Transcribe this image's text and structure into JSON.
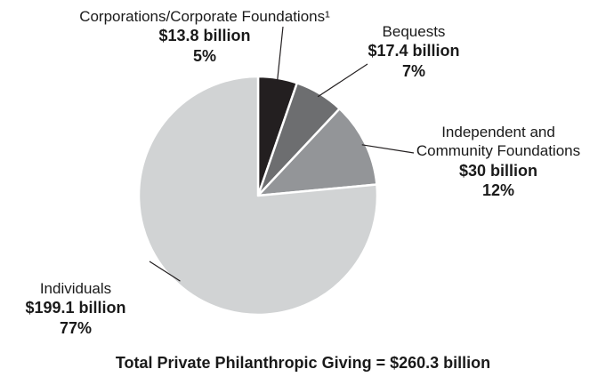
{
  "chart_data": {
    "type": "pie",
    "title": "",
    "footer": "Total Private Philanthropic Giving = $260.3 billion",
    "slices": [
      {
        "name": "Corporations/Corporate Foundations¹",
        "amount": "$13.8 billion",
        "percent_label": "5%",
        "value": 13.8,
        "color": "#231f20"
      },
      {
        "name": "Bequests",
        "amount": "$17.4 billion",
        "percent_label": "7%",
        "value": 17.4,
        "color": "#6d6e70"
      },
      {
        "name_lines": [
          "Independent and",
          "Community Foundations"
        ],
        "amount": "$30 billion",
        "percent_label": "12%",
        "value": 30,
        "color": "#939598"
      },
      {
        "name": "Individuals",
        "amount": "$199.1 billion",
        "percent_label": "77%",
        "value": 199.1,
        "color": "#d1d3d4"
      }
    ],
    "total": 260.3
  }
}
